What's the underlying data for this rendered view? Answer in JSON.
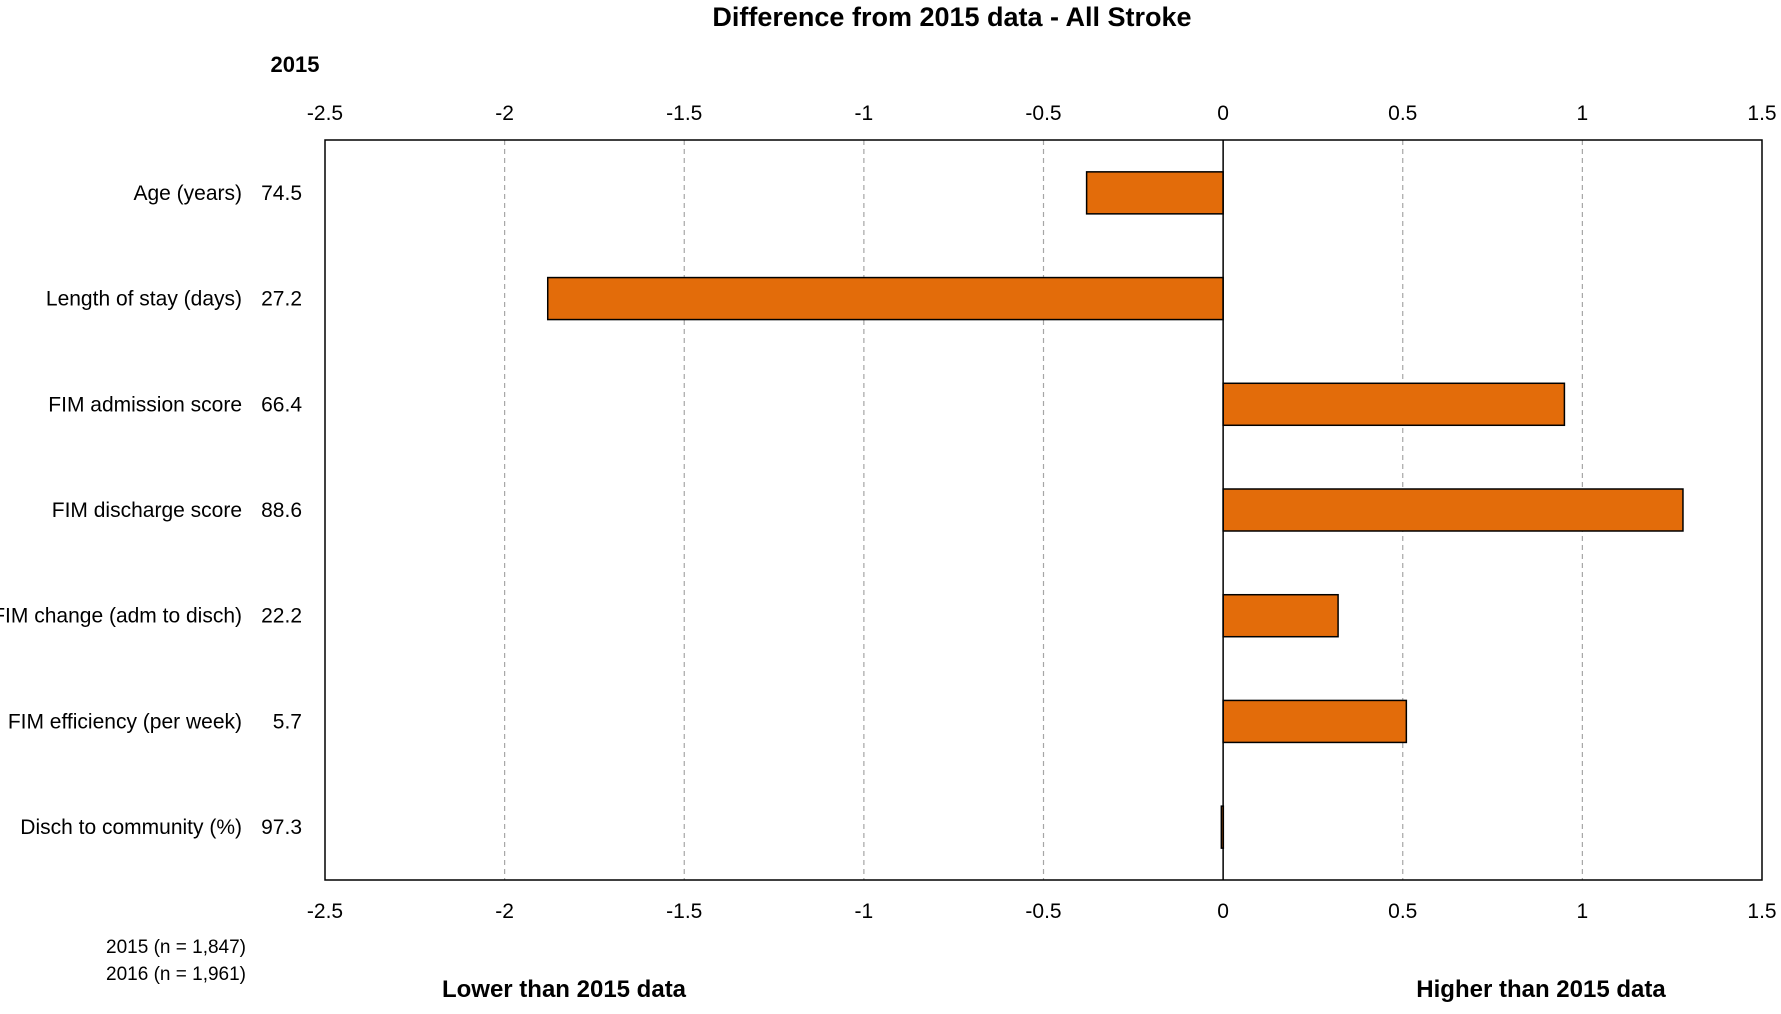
{
  "chart_data": {
    "type": "bar",
    "orientation": "horizontal",
    "title": "Difference  from 2015 data - All Stroke",
    "baseline_year_heading": "2015",
    "categories": [
      "Age (years)",
      "Length of stay (days)",
      "FIM admission score",
      "FIM discharge score",
      "FIM change (adm to disch)",
      "FIM efficiency (per week)",
      "Disch to community (%)"
    ],
    "baseline_values": [
      "74.5",
      "27.2",
      "66.4",
      "88.6",
      "22.2",
      "5.7",
      "97.3"
    ],
    "series": [
      {
        "values": [
          -0.38,
          -1.88,
          0.95,
          1.28,
          0.32,
          0.51,
          -0.005
        ]
      }
    ],
    "xlim": [
      -2.5,
      1.5
    ],
    "x_ticks": [
      -2.5,
      -2,
      -1.5,
      -1,
      -0.5,
      0,
      0.5,
      1,
      1.5
    ],
    "x_tick_labels": [
      "-2.5",
      "-2",
      "-1.5",
      "-1",
      "-0.5",
      "0",
      "0.5",
      "1",
      "1.5"
    ],
    "grid": "vertical dashed",
    "bar_color": "#e36c0a",
    "sample_notes": [
      "2015  (n = 1,847)",
      "2016  (n = 1,961)"
    ],
    "footer_left": "Lower than 2015 data",
    "footer_right": "Higher than 2015 data"
  }
}
